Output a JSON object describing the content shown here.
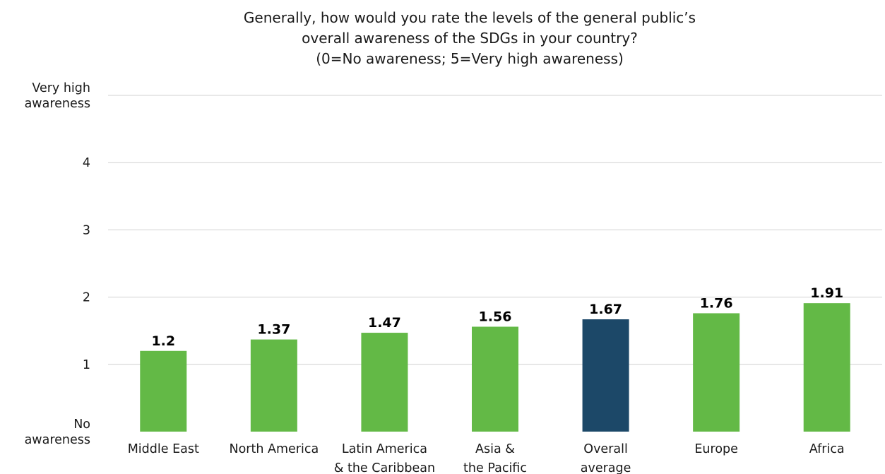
{
  "chart_data": {
    "type": "bar",
    "title_lines": [
      "Generally, how would you rate the levels of the general public’s",
      "overall awareness of the SDGs in your country?",
      "(0=No awareness; 5=Very high awareness)"
    ],
    "categories": [
      [
        "Middle East"
      ],
      [
        "North America"
      ],
      [
        "Latin America",
        "& the Caribbean"
      ],
      [
        "Asia &",
        "the Pacific"
      ],
      [
        "Overall",
        "average"
      ],
      [
        "Europe"
      ],
      [
        "Africa"
      ]
    ],
    "values": [
      1.2,
      1.37,
      1.47,
      1.56,
      1.67,
      1.76,
      1.91
    ],
    "value_labels": [
      "1.2",
      "1.37",
      "1.47",
      "1.56",
      "1.67",
      "1.76",
      "1.91"
    ],
    "bar_colors": [
      "#63b946",
      "#63b946",
      "#63b946",
      "#63b946",
      "#1c4868",
      "#63b946",
      "#63b946"
    ],
    "ylim": [
      0,
      5
    ],
    "yticks": [
      {
        "value": 0,
        "label": [
          "No",
          "awareness"
        ]
      },
      {
        "value": 1,
        "label": [
          "1"
        ]
      },
      {
        "value": 2,
        "label": [
          "2"
        ]
      },
      {
        "value": 3,
        "label": [
          "3"
        ]
      },
      {
        "value": 4,
        "label": [
          "4"
        ]
      },
      {
        "value": 5,
        "label": [
          "Very high",
          "awareness"
        ]
      }
    ],
    "grid": true,
    "colors": {
      "region_bar": "#63b946",
      "average_bar": "#1c4868",
      "gridline": "#d0d0d0",
      "text": "#1a1a1a"
    }
  }
}
